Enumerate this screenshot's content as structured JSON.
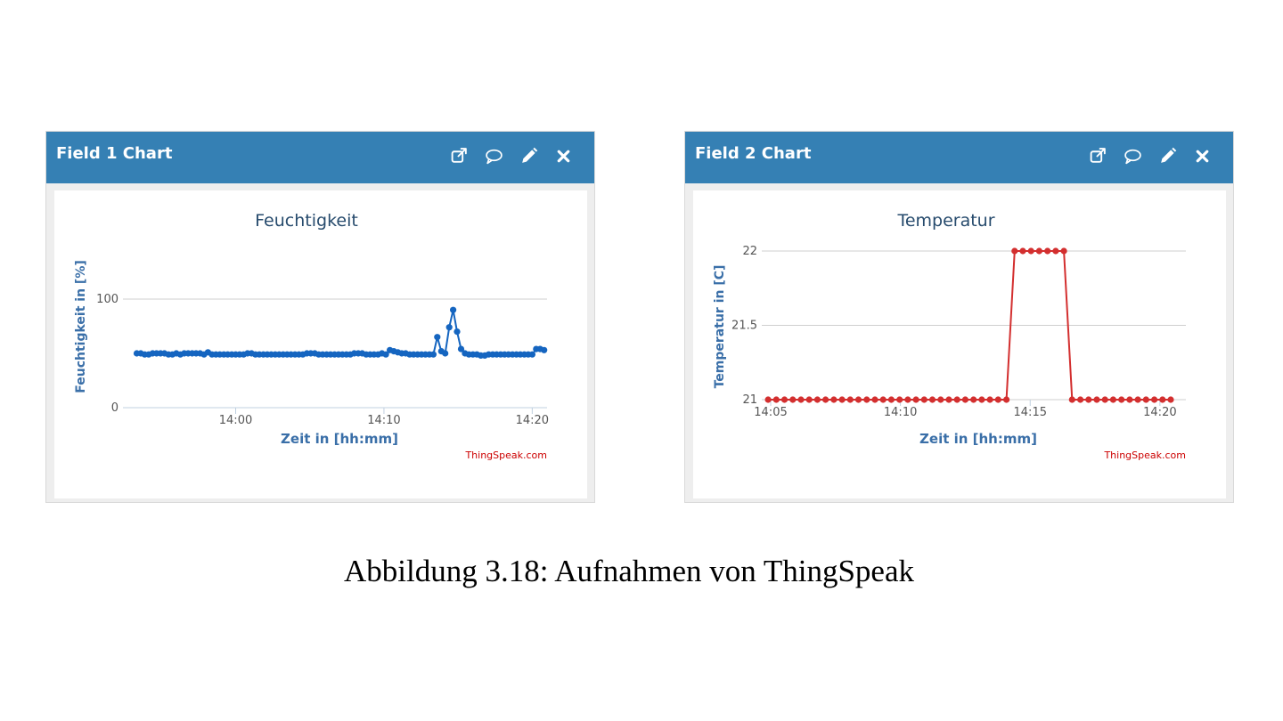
{
  "widgets": [
    {
      "header_title": "Field 1 Chart",
      "icons": [
        "external-link-icon",
        "comment-icon",
        "pencil-icon",
        "close-icon"
      ],
      "credit": "ThingSpeak.com"
    },
    {
      "header_title": "Field 2 Chart",
      "icons": [
        "external-link-icon",
        "comment-icon",
        "pencil-icon",
        "close-icon"
      ],
      "credit": "ThingSpeak.com"
    }
  ],
  "colors": {
    "header": "#3580b4",
    "series_1": "#1565c0",
    "series_2": "#d32f2f",
    "axis_text": "#3a6fa8",
    "credit": "#cc0000"
  },
  "caption": "Abbildung 3.18: Aufnahmen von ThingSpeak",
  "chart_data": [
    {
      "type": "line",
      "title": "Feuchtigkeit",
      "xlabel": "Zeit in [hh:mm]",
      "ylabel": "Feuchtigkeit in [%]",
      "xlim": [
        "13:53",
        "14:21"
      ],
      "ylim": [
        0,
        100
      ],
      "x_ticks": [
        "14:00",
        "14:10",
        "14:20"
      ],
      "y_ticks": [
        0,
        100
      ],
      "grid": true,
      "series": [
        {
          "x": [
            "13:53:20",
            "13:53:36",
            "13:53:52",
            "13:54:08",
            "13:54:24",
            "13:54:40",
            "13:54:56",
            "13:55:12",
            "13:55:28",
            "13:55:44",
            "13:56:00",
            "13:56:16",
            "13:56:32",
            "13:56:48",
            "13:57:04",
            "13:57:20",
            "13:57:36",
            "13:57:52",
            "13:58:08",
            "13:58:24",
            "13:58:40",
            "13:58:56",
            "13:59:12",
            "13:59:28",
            "13:59:44",
            "14:00:00",
            "14:00:16",
            "14:00:32",
            "14:00:48",
            "14:01:04",
            "14:01:20",
            "14:01:36",
            "14:01:52",
            "14:02:08",
            "14:02:24",
            "14:02:40",
            "14:02:56",
            "14:03:12",
            "14:03:28",
            "14:03:44",
            "14:04:00",
            "14:04:16",
            "14:04:32",
            "14:04:48",
            "14:05:04",
            "14:05:20",
            "14:05:36",
            "14:05:52",
            "14:06:08",
            "14:06:24",
            "14:06:40",
            "14:06:56",
            "14:07:12",
            "14:07:28",
            "14:07:44",
            "14:08:00",
            "14:08:16",
            "14:08:32",
            "14:08:48",
            "14:09:04",
            "14:09:20",
            "14:09:36",
            "14:09:52",
            "14:10:08",
            "14:10:24",
            "14:10:40",
            "14:10:56",
            "14:11:12",
            "14:11:28",
            "14:11:44",
            "14:12:00",
            "14:12:16",
            "14:12:32",
            "14:12:48",
            "14:13:04",
            "14:13:20",
            "14:13:36",
            "14:13:52",
            "14:14:08",
            "14:14:24",
            "14:14:40",
            "14:14:56",
            "14:15:12",
            "14:15:28",
            "14:15:44",
            "14:16:00",
            "14:16:16",
            "14:16:32",
            "14:16:48",
            "14:17:04",
            "14:17:20",
            "14:17:36",
            "14:17:52",
            "14:18:08",
            "14:18:24",
            "14:18:40",
            "14:18:56",
            "14:19:12",
            "14:19:28",
            "14:19:44",
            "14:20:00",
            "14:20:16",
            "14:20:32",
            "14:20:48"
          ],
          "values": [
            50,
            50,
            49,
            49,
            50,
            50,
            50,
            50,
            49,
            49,
            50,
            49,
            50,
            50,
            50,
            50,
            50,
            49,
            51,
            49,
            49,
            49,
            49,
            49,
            49,
            49,
            49,
            49,
            50,
            50,
            49,
            49,
            49,
            49,
            49,
            49,
            49,
            49,
            49,
            49,
            49,
            49,
            49,
            50,
            50,
            50,
            49,
            49,
            49,
            49,
            49,
            49,
            49,
            49,
            49,
            50,
            50,
            50,
            49,
            49,
            49,
            49,
            50,
            49,
            53,
            52,
            51,
            50,
            50,
            49,
            49,
            49,
            49,
            49,
            49,
            49,
            65,
            52,
            50,
            74,
            90,
            70,
            54,
            50,
            49,
            49,
            49,
            48,
            48,
            49,
            49,
            49,
            49,
            49,
            49,
            49,
            49,
            49,
            49,
            49,
            49,
            54,
            54,
            53
          ]
        }
      ]
    },
    {
      "type": "line",
      "title": "Temperatur",
      "xlabel": "Zeit in [hh:mm]",
      "ylabel": "Temperatur in [C]",
      "xlim": [
        "14:05",
        "14:21"
      ],
      "ylim": [
        21,
        22
      ],
      "x_ticks": [
        "14:05",
        "14:10",
        "14:15",
        "14:20"
      ],
      "y_ticks": [
        "21",
        "21.5",
        "22"
      ],
      "grid": true,
      "series": [
        {
          "x": [
            "14:04:54",
            "14:05:13",
            "14:05:32",
            "14:05:51",
            "14:06:10",
            "14:06:29",
            "14:06:48",
            "14:07:07",
            "14:07:26",
            "14:07:45",
            "14:08:04",
            "14:08:23",
            "14:08:42",
            "14:09:01",
            "14:09:20",
            "14:09:39",
            "14:09:58",
            "14:10:17",
            "14:10:36",
            "14:10:55",
            "14:11:14",
            "14:11:33",
            "14:11:52",
            "14:12:11",
            "14:12:30",
            "14:12:49",
            "14:13:08",
            "14:13:27",
            "14:13:46",
            "14:14:05",
            "14:14:24",
            "14:14:43",
            "14:15:02",
            "14:15:21",
            "14:15:40",
            "14:15:59",
            "14:16:18",
            "14:16:37",
            "14:16:56",
            "14:17:15",
            "14:17:34",
            "14:17:53",
            "14:18:12",
            "14:18:31",
            "14:18:50",
            "14:19:09",
            "14:19:28",
            "14:19:47",
            "14:20:06",
            "14:20:25"
          ],
          "values": [
            21,
            21,
            21,
            21,
            21,
            21,
            21,
            21,
            21,
            21,
            21,
            21,
            21,
            21,
            21,
            21,
            21,
            21,
            21,
            21,
            21,
            21,
            21,
            21,
            21,
            21,
            21,
            21,
            21,
            21,
            22,
            22,
            22,
            22,
            22,
            22,
            22,
            21,
            21,
            21,
            21,
            21,
            21,
            21,
            21,
            21,
            21,
            21,
            21,
            21
          ]
        }
      ]
    }
  ]
}
